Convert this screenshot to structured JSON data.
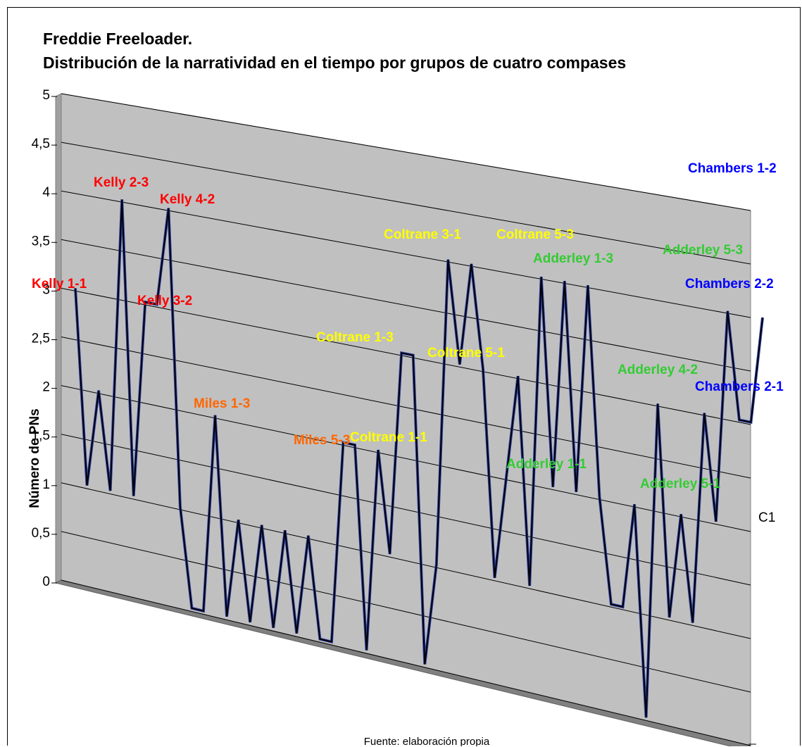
{
  "chart_data": {
    "type": "line",
    "title": "Freddie Freeloader.",
    "subtitle": "Distribución de la narratividad en el tiempo por grupos de cuatro compases",
    "ylabel": "Número de PNs",
    "xlabel": "",
    "x_tick_label": "C1",
    "ylim": [
      0,
      5
    ],
    "yticks": [
      "0",
      "0,5",
      "1",
      "1,5",
      "2",
      "2,5",
      "3",
      "3,5",
      "4",
      "4,5",
      "5"
    ],
    "grid": true,
    "values": [
      3,
      1,
      2,
      1,
      4,
      1,
      3,
      3,
      4,
      1,
      0,
      0,
      2,
      0,
      1,
      0,
      1,
      0,
      1,
      0,
      1,
      0,
      0,
      2,
      2,
      0,
      2,
      1,
      3,
      3,
      0,
      1,
      4,
      3,
      4,
      3,
      1,
      2,
      3,
      1,
      4,
      2,
      4,
      2,
      4,
      2,
      1,
      1,
      2,
      0,
      3,
      1,
      2,
      1,
      3,
      2,
      4,
      3,
      3,
      4
    ],
    "annotations": [
      {
        "text": "Kelly 1-1",
        "color": "#ff0000"
      },
      {
        "text": "Kelly 2-3",
        "color": "#ff0000"
      },
      {
        "text": "Kelly 4-2",
        "color": "#ff0000"
      },
      {
        "text": "Kelly 3-2",
        "color": "#ff0000"
      },
      {
        "text": "Miles 1-3",
        "color": "#ff6600"
      },
      {
        "text": "Miles 5-3",
        "color": "#ff6600"
      },
      {
        "text": "Coltrane 1-1",
        "color": "#ffff00"
      },
      {
        "text": "Coltrane 1-3",
        "color": "#ffff00"
      },
      {
        "text": "Coltrane 3-1",
        "color": "#ffff00"
      },
      {
        "text": "Coltrane 5-3",
        "color": "#ffff00"
      },
      {
        "text": "Coltrane 5-1",
        "color": "#ffff00"
      },
      {
        "text": "Adderley 1-3",
        "color": "#33cc33"
      },
      {
        "text": "Adderley 1-1",
        "color": "#33cc33"
      },
      {
        "text": "Adderley 5-3",
        "color": "#33cc33"
      },
      {
        "text": "Adderley 4-2",
        "color": "#33cc33"
      },
      {
        "text": "Adderley 5-1",
        "color": "#33cc33"
      },
      {
        "text": "Chambers 1-2",
        "color": "#0000ff"
      },
      {
        "text": "Chambers 2-2",
        "color": "#0000ff"
      },
      {
        "text": "Chambers 2-1",
        "color": "#0000ff"
      }
    ],
    "line_color": "#000000",
    "wall_color": "#c0c0c0"
  },
  "source_note": "Fuente: elaboración propia"
}
